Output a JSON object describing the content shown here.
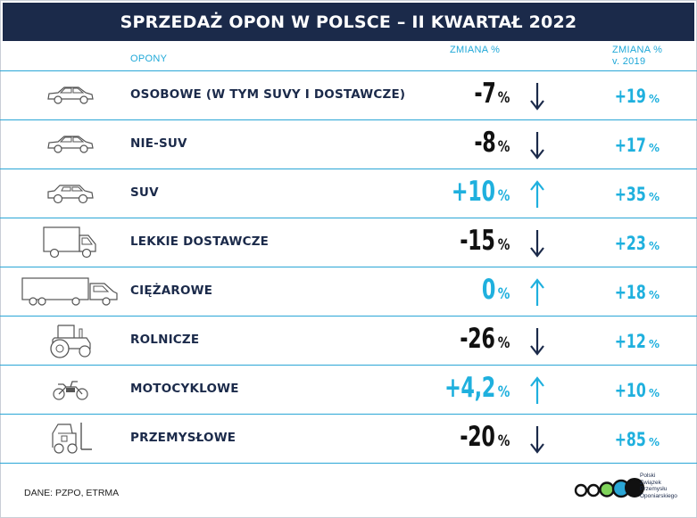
{
  "title": "SPRZEDAŻ OPON W POLSCE – II KWARTAŁ 2022",
  "headers": {
    "tires": "OPONY",
    "change": "ZMIANA %",
    "change2019_line1": "ZMIANA %",
    "change2019_line2": "v. 2019"
  },
  "rows": [
    {
      "label": "OSOBOWE (W TYM SUVY I DOSTAWCZE)",
      "change": "-7",
      "pct": "%",
      "direction": "down",
      "change2019": "+19",
      "pct2019": "%",
      "icon": "car-icon"
    },
    {
      "label": "NIE-SUV",
      "change": "-8",
      "pct": "%",
      "direction": "down",
      "change2019": "+17",
      "pct2019": "%",
      "icon": "car-icon"
    },
    {
      "label": "SUV",
      "change": "+10",
      "pct": "%",
      "direction": "up",
      "change2019": "+35",
      "pct2019": "%",
      "icon": "suv-icon"
    },
    {
      "label": "LEKKIE DOSTAWCZE",
      "change": "-15",
      "pct": "%",
      "direction": "down",
      "change2019": "+23",
      "pct2019": "%",
      "icon": "van-icon"
    },
    {
      "label": "CIĘŻAROWE",
      "change": "0",
      "pct": "%",
      "direction": "up",
      "change2019": "+18",
      "pct2019": "%",
      "icon": "truck-icon"
    },
    {
      "label": "ROLNICZE",
      "change": "-26",
      "pct": "%",
      "direction": "down",
      "change2019": "+12",
      "pct2019": "%",
      "icon": "tractor-icon"
    },
    {
      "label": "MOTOCYKLOWE",
      "change": "+4,2",
      "pct": "%",
      "direction": "up",
      "change2019": "+10",
      "pct2019": "%",
      "icon": "motorcycle-icon"
    },
    {
      "label": "PRZEMYSŁOWE",
      "change": "-20",
      "pct": "%",
      "direction": "down",
      "change2019": "+85",
      "pct2019": "%",
      "icon": "forklift-icon"
    }
  ],
  "source": "DANE: PZPO, ETRMA",
  "logo": {
    "line1": "Polski",
    "line2": "Związek",
    "line3": "Przemysłu",
    "line4": "Oponiarskiego"
  },
  "colors": {
    "navy": "#1b2a4a",
    "accent": "#1fb0de",
    "negative": "#111111",
    "divider": "#2aa6d6"
  }
}
